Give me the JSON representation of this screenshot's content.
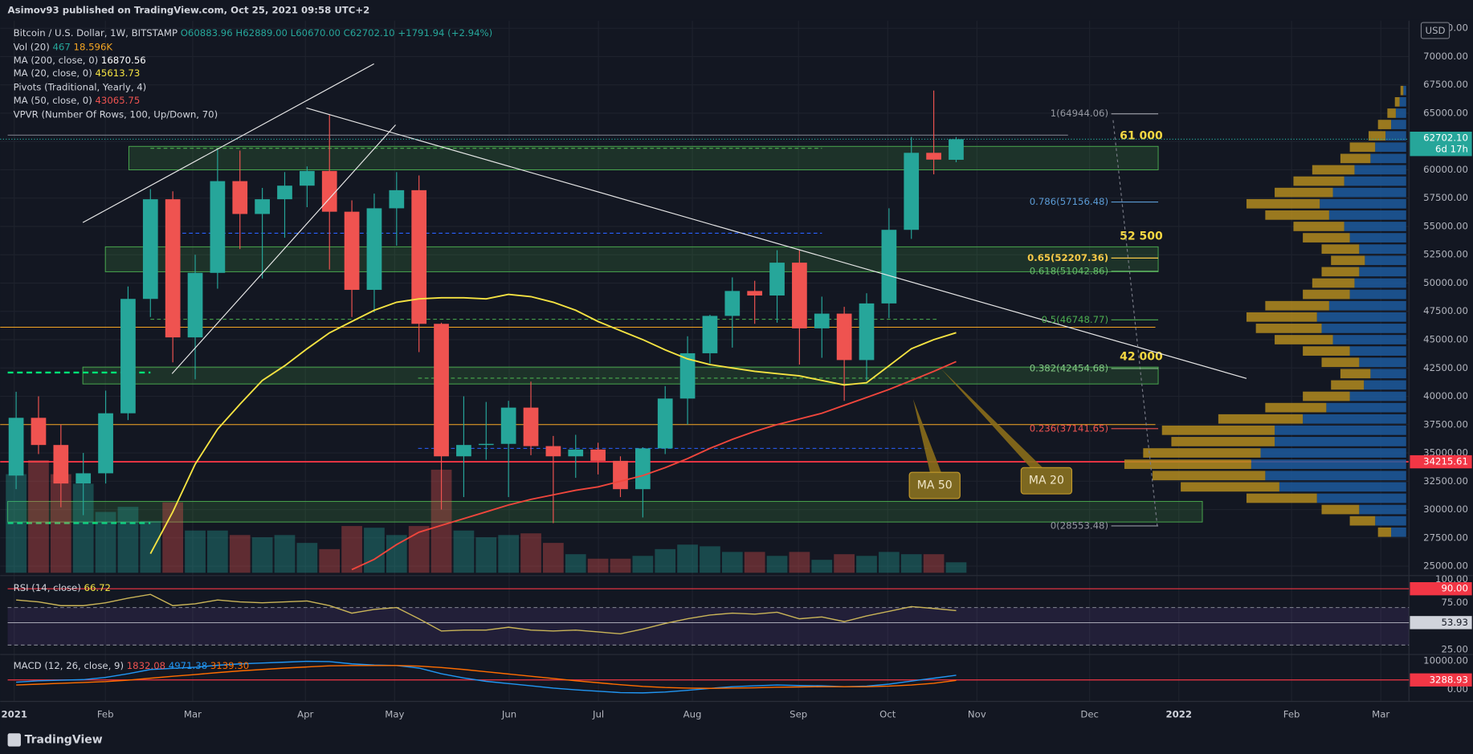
{
  "header": {
    "published": "Asimov93 published on TradingView.com, Oct 25, 2021 09:58 UTC+2",
    "logo": "TradingView"
  },
  "legend": {
    "title": "Bitcoin / U.S. Dollar, 1W, BITSTAMP",
    "o": "O60883.96",
    "h": "H62889.00",
    "l": "L60670.00",
    "c": "C62702.10",
    "change": "+1791.94 (+2.94%)",
    "vol": "Vol (20)",
    "vol_a": "467",
    "vol_b": "18.596K",
    "ma200": "MA (200, close, 0)",
    "ma200_v": "16870.56",
    "ma20": "MA (20, close, 0)",
    "ma20_v": "45613.73",
    "pivots": "Pivots (Traditional, Yearly, 4)",
    "ma50": "MA (50, close, 0)",
    "ma50_v": "43065.75",
    "vpvr": "VPVR (Number Of Rows, 100, Up/Down, 70)",
    "rsi": "RSI (14, close)",
    "rsi_v": "66.72",
    "macd": "MACD (12, 26, close, 9)",
    "macd_a": "1832.08",
    "macd_b": "4971.38",
    "macd_c": "3139.30"
  },
  "chart_data": {
    "type": "candlestick",
    "currency": "USD",
    "ylim": [
      24250,
      73170
    ],
    "yticks": [
      {
        "value": 25000,
        "label": "25000.00"
      },
      {
        "value": 27500,
        "label": "27500.00"
      },
      {
        "value": 30000,
        "label": "30000.00"
      },
      {
        "value": 32500,
        "label": "32500.00"
      },
      {
        "value": 35000,
        "label": "35000.00"
      },
      {
        "value": 37500,
        "label": "37500.00"
      },
      {
        "value": 40000,
        "label": "40000.00"
      },
      {
        "value": 42500,
        "label": "42500.00"
      },
      {
        "value": 45000,
        "label": "45000.00"
      },
      {
        "value": 47500,
        "label": "47500.00"
      },
      {
        "value": 50000,
        "label": "50000.00"
      },
      {
        "value": 52500,
        "label": "52500.00"
      },
      {
        "value": 55000,
        "label": "55000.00"
      },
      {
        "value": 57500,
        "label": "57500.00"
      },
      {
        "value": 60000,
        "label": "60000.00"
      },
      {
        "value": 62500,
        "label": "62500.00"
      },
      {
        "value": 65000,
        "label": "65000.00"
      },
      {
        "value": 67500,
        "label": "67500.00"
      },
      {
        "value": 70000,
        "label": "70000.00"
      },
      {
        "value": 72500,
        "label": "72500.00"
      }
    ],
    "time_labels": [
      "2021",
      "Feb",
      "Mar",
      "Apr",
      "May",
      "Jun",
      "Jul",
      "Aug",
      "Sep",
      "Oct",
      "Nov",
      "Dec",
      "2022",
      "Feb",
      "Mar"
    ],
    "open": [
      33000,
      38100,
      35700,
      32300,
      33200,
      38500,
      48600,
      57400,
      45200,
      50900,
      59000,
      56100,
      57400,
      58600,
      59900,
      56300,
      49400,
      56600,
      58200,
      46400,
      34700,
      35700,
      35800,
      39000,
      35600,
      34700,
      35300,
      34300,
      31800,
      35400,
      39800,
      43800,
      47100,
      49300,
      48900,
      51800,
      46000,
      47300,
      43200,
      48200,
      54700,
      61500,
      60883.96
    ],
    "high": [
      40400,
      40000,
      37500,
      35000,
      40500,
      49700,
      58300,
      58100,
      52500,
      61800,
      61700,
      58400,
      59800,
      60300,
      64900,
      57300,
      57900,
      59800,
      59500,
      46500,
      40000,
      39500,
      39600,
      41300,
      36500,
      36600,
      35900,
      34700,
      35500,
      40900,
      45300,
      47200,
      50500,
      50200,
      52900,
      52900,
      48800,
      47900,
      49100,
      56600,
      62900,
      67000,
      62889
    ],
    "low": [
      31800,
      34900,
      30200,
      29500,
      32300,
      37900,
      47000,
      43000,
      41500,
      49500,
      53000,
      50400,
      54000,
      56700,
      51200,
      47000,
      47400,
      53300,
      43900,
      30000,
      31100,
      34400,
      31100,
      34800,
      28800,
      32800,
      33100,
      31100,
      29300,
      34900,
      37500,
      42900,
      44300,
      46400,
      46500,
      42800,
      43400,
      39600,
      41400,
      46900,
      53900,
      59600,
      60670
    ],
    "close": [
      38100,
      35700,
      32300,
      33200,
      38500,
      48600,
      57400,
      45200,
      50900,
      59000,
      56100,
      57400,
      58600,
      59900,
      56300,
      49400,
      56600,
      58200,
      46400,
      34700,
      35700,
      35800,
      39000,
      35600,
      34700,
      35300,
      34300,
      31800,
      35400,
      39800,
      43800,
      47100,
      49300,
      48900,
      51800,
      46000,
      47300,
      43200,
      48200,
      54700,
      61500,
      60900,
      62702.1
    ],
    "up_color": "#26a69a",
    "down_color": "#ef5350",
    "volume": [
      175,
      200,
      175,
      158,
      108,
      117,
      92,
      125,
      75,
      75,
      67,
      63,
      67,
      53,
      42,
      83,
      80,
      67,
      83,
      183,
      75,
      63,
      67,
      70,
      53,
      33,
      25,
      25,
      30,
      42,
      50,
      47,
      37,
      37,
      30,
      37,
      23,
      33,
      30,
      37,
      33,
      33,
      18.596
    ],
    "series": [
      {
        "name": "MA 20",
        "color": "#f5e342",
        "values": [
          null,
          null,
          null,
          null,
          null,
          null,
          26100,
          29800,
          34000,
          37100,
          39300,
          41400,
          42700,
          44200,
          45600,
          46600,
          47600,
          48300,
          48600,
          48700,
          48700,
          48600,
          49000,
          48800,
          48300,
          47600,
          46600,
          45800,
          45000,
          44100,
          43300,
          42800,
          42500,
          42200,
          42000,
          41800,
          41400,
          41000,
          41200,
          42700,
          44200,
          45000,
          45613.73
        ]
      },
      {
        "name": "MA 50",
        "color": "#f0463c",
        "values": [
          null,
          null,
          null,
          null,
          null,
          null,
          null,
          null,
          null,
          null,
          null,
          null,
          null,
          null,
          null,
          24700,
          25600,
          26900,
          28000,
          28600,
          29200,
          29800,
          30400,
          30900,
          31300,
          31700,
          32000,
          32500,
          33000,
          33700,
          34500,
          35400,
          36200,
          36900,
          37500,
          38000,
          38500,
          39200,
          39900,
          40600,
          41400,
          42200,
          43065.75
        ]
      }
    ],
    "last_price_label": "62702.10",
    "countdown": "6d 17h",
    "levels": [
      {
        "value": 34215.61,
        "color": "#f23645",
        "dashed": false
      },
      {
        "value": 46100,
        "color": "#f5a623",
        "dashed": false
      },
      {
        "value": 37500,
        "color": "#f5a623",
        "dashed": false
      },
      {
        "value": 63060,
        "color": "#787b86",
        "dashed": false
      },
      {
        "value": 54400,
        "color": "#2962ff",
        "dashed": true
      },
      {
        "value": 61900,
        "color": "#4caf50",
        "dashed": true
      },
      {
        "value": 46800,
        "color": "#4caf50",
        "dashed": true
      },
      {
        "value": 41600,
        "color": "#4caf50",
        "dashed": true
      },
      {
        "value": 42100,
        "color": "#00e676",
        "dashed": true
      },
      {
        "value": 28800,
        "color": "#00e676",
        "dashed": true
      },
      {
        "value": 35400,
        "color": "#2962ff",
        "dashed": true
      }
    ],
    "zones": [
      {
        "low": 60000,
        "high": 62070
      },
      {
        "low": 51000,
        "high": 53200
      },
      {
        "low": 41090,
        "high": 42580
      },
      {
        "low": 28900,
        "high": 30720
      }
    ],
    "zone_labels": [
      "61 000",
      "52 500",
      "42 000"
    ],
    "fib": [
      {
        "label": "1(64944.06)",
        "value": 64944.06,
        "color": "#9598a1"
      },
      {
        "label": "0.786(57156.48)",
        "value": 57156.48,
        "color": "#5b9bd5"
      },
      {
        "label": "0.65(52207.36)",
        "value": 52207.36,
        "color": "#f7c948"
      },
      {
        "label": "0.618(51042.86)",
        "value": 51042.86,
        "color": "#66bb6a"
      },
      {
        "label": "0.5(46748.77)",
        "value": 46748.77,
        "color": "#4caf50"
      },
      {
        "label": "0.382(42454.68)",
        "value": 42454.68,
        "color": "#81c784"
      },
      {
        "label": "0.236(37141.65)",
        "value": 37141.65,
        "color": "#ef5350"
      },
      {
        "label": "0(28553.48)",
        "value": 28553.48,
        "color": "#9598a1"
      }
    ],
    "annotations": [
      "MA 50",
      "MA 20"
    ],
    "volume_profile": {
      "prices": [
        28000,
        29000,
        30000,
        31000,
        32000,
        33000,
        34000,
        35000,
        36000,
        37000,
        38000,
        39000,
        40000,
        41000,
        42000,
        43000,
        44000,
        45000,
        46000,
        47000,
        48000,
        49000,
        50000,
        51000,
        52000,
        53000,
        54000,
        55000,
        56000,
        57000,
        58000,
        59000,
        60000,
        61000,
        62000,
        63000,
        64000,
        65000,
        66000,
        67000
      ],
      "up": [
        16,
        33,
        50,
        95,
        135,
        150,
        165,
        155,
        140,
        140,
        110,
        85,
        60,
        45,
        38,
        50,
        60,
        78,
        90,
        95,
        82,
        60,
        55,
        50,
        44,
        50,
        60,
        66,
        82,
        92,
        78,
        66,
        55,
        38,
        33,
        22,
        16,
        11,
        7,
        3
      ],
      "down": [
        14,
        27,
        40,
        75,
        105,
        120,
        135,
        125,
        110,
        120,
        90,
        65,
        50,
        35,
        32,
        40,
        50,
        62,
        70,
        75,
        68,
        50,
        45,
        40,
        36,
        40,
        50,
        54,
        68,
        78,
        62,
        54,
        45,
        32,
        27,
        18,
        14,
        9,
        5,
        3
      ],
      "up_color": "#1d5a9e",
      "down_color": "#b38b1f"
    },
    "rsi": {
      "ylim": [
        20,
        103
      ],
      "yticks": [
        {
          "value": 100,
          "label": "100.00"
        },
        {
          "value": 75,
          "label": "75.00"
        },
        {
          "value": 25,
          "label": "25.00"
        }
      ],
      "band": [
        30,
        70
      ],
      "color": "#c9b458",
      "values": [
        78,
        76,
        72,
        72,
        75,
        80,
        84,
        72,
        74,
        78,
        76,
        75,
        76,
        77,
        72,
        64,
        68,
        70,
        58,
        45,
        46,
        46,
        49,
        46,
        45,
        46,
        44,
        42,
        47,
        53,
        58,
        62,
        64,
        63,
        65,
        58,
        60,
        55,
        61,
        66,
        71,
        69,
        66.72
      ],
      "upper": {
        "value": 90,
        "label": "90.00"
      },
      "marker": 53.93
    },
    "macd": {
      "ylim": [
        -3670,
        12000
      ],
      "yticks": [
        {
          "value": 10000,
          "label": "10000.00"
        },
        {
          "value": 0,
          "label": "0.00"
        }
      ],
      "marker": 3288.93,
      "series": [
        {
          "name": "MACD",
          "color": "#2196f3",
          "values": [
            2500,
            3000,
            3200,
            3400,
            4200,
            5500,
            7000,
            7400,
            7800,
            8500,
            9000,
            9300,
            9600,
            9900,
            9800,
            9000,
            8600,
            8400,
            7500,
            5500,
            4000,
            2800,
            2000,
            1200,
            400,
            -200,
            -700,
            -1200,
            -1300,
            -1000,
            -400,
            300,
            900,
            1200,
            1500,
            1300,
            1200,
            900,
            1100,
            1800,
            2900,
            3900,
            4971.38
          ]
        },
        {
          "name": "Signal",
          "color": "#ff6d00",
          "values": [
            1500,
            1800,
            2100,
            2400,
            2700,
            3200,
            3900,
            4600,
            5200,
            5900,
            6500,
            7000,
            7500,
            7900,
            8300,
            8400,
            8400,
            8400,
            8200,
            7700,
            7000,
            6200,
            5400,
            4600,
            3800,
            3000,
            2300,
            1600,
            1000,
            600,
            400,
            300,
            400,
            500,
            700,
            800,
            900,
            900,
            900,
            1100,
            1500,
            2100,
            3139.3
          ]
        }
      ]
    }
  }
}
